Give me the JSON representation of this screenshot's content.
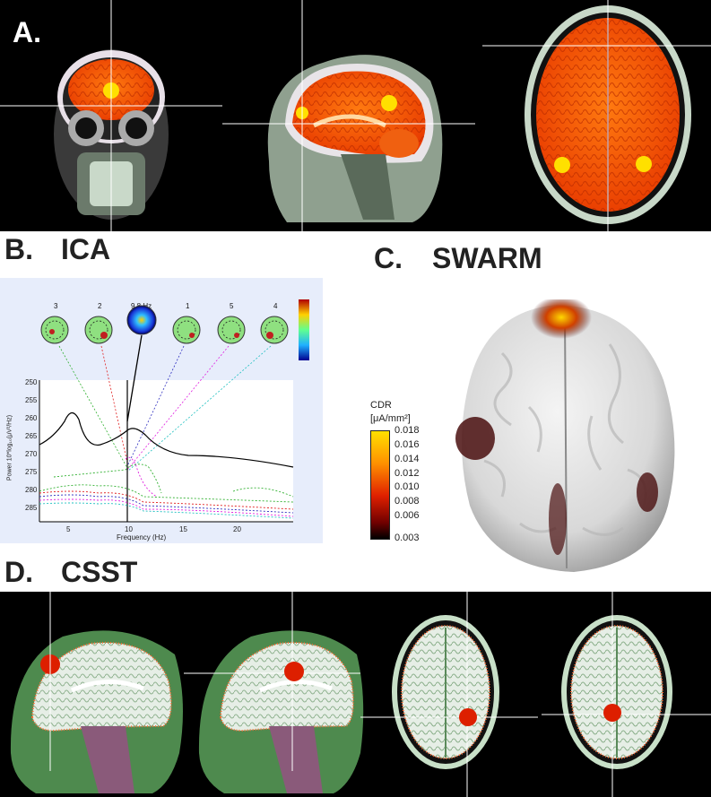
{
  "panel_a": {
    "label": "A."
  },
  "panel_b": {
    "label": "B.",
    "title": "ICA",
    "components": [
      "3",
      "2",
      "9.8 Hz",
      "1",
      "5",
      "4"
    ],
    "y_label": "Power 10*log₁₀(μV²/Hz)",
    "x_label": "Frequency (Hz)",
    "y_ticks": [
      "250",
      "255",
      "260",
      "265",
      "270",
      "275",
      "280",
      "285"
    ],
    "x_ticks": [
      "5",
      "10",
      "15",
      "20"
    ]
  },
  "panel_c": {
    "label": "C.",
    "title": "SWARM",
    "colorbar_title": "CDR",
    "colorbar_unit": "[μA/mm²]",
    "colorbar_ticks": [
      "0.018",
      "0.016",
      "0.014",
      "0.012",
      "0.010",
      "0.008",
      "0.006",
      "0.003"
    ]
  },
  "panel_d": {
    "label": "D.",
    "title": "CSST"
  },
  "colors": {
    "activation": "#ff5a00",
    "hotspot": "#ffe000",
    "marker": "#dd1f00",
    "crosshair": "#ffffff"
  }
}
